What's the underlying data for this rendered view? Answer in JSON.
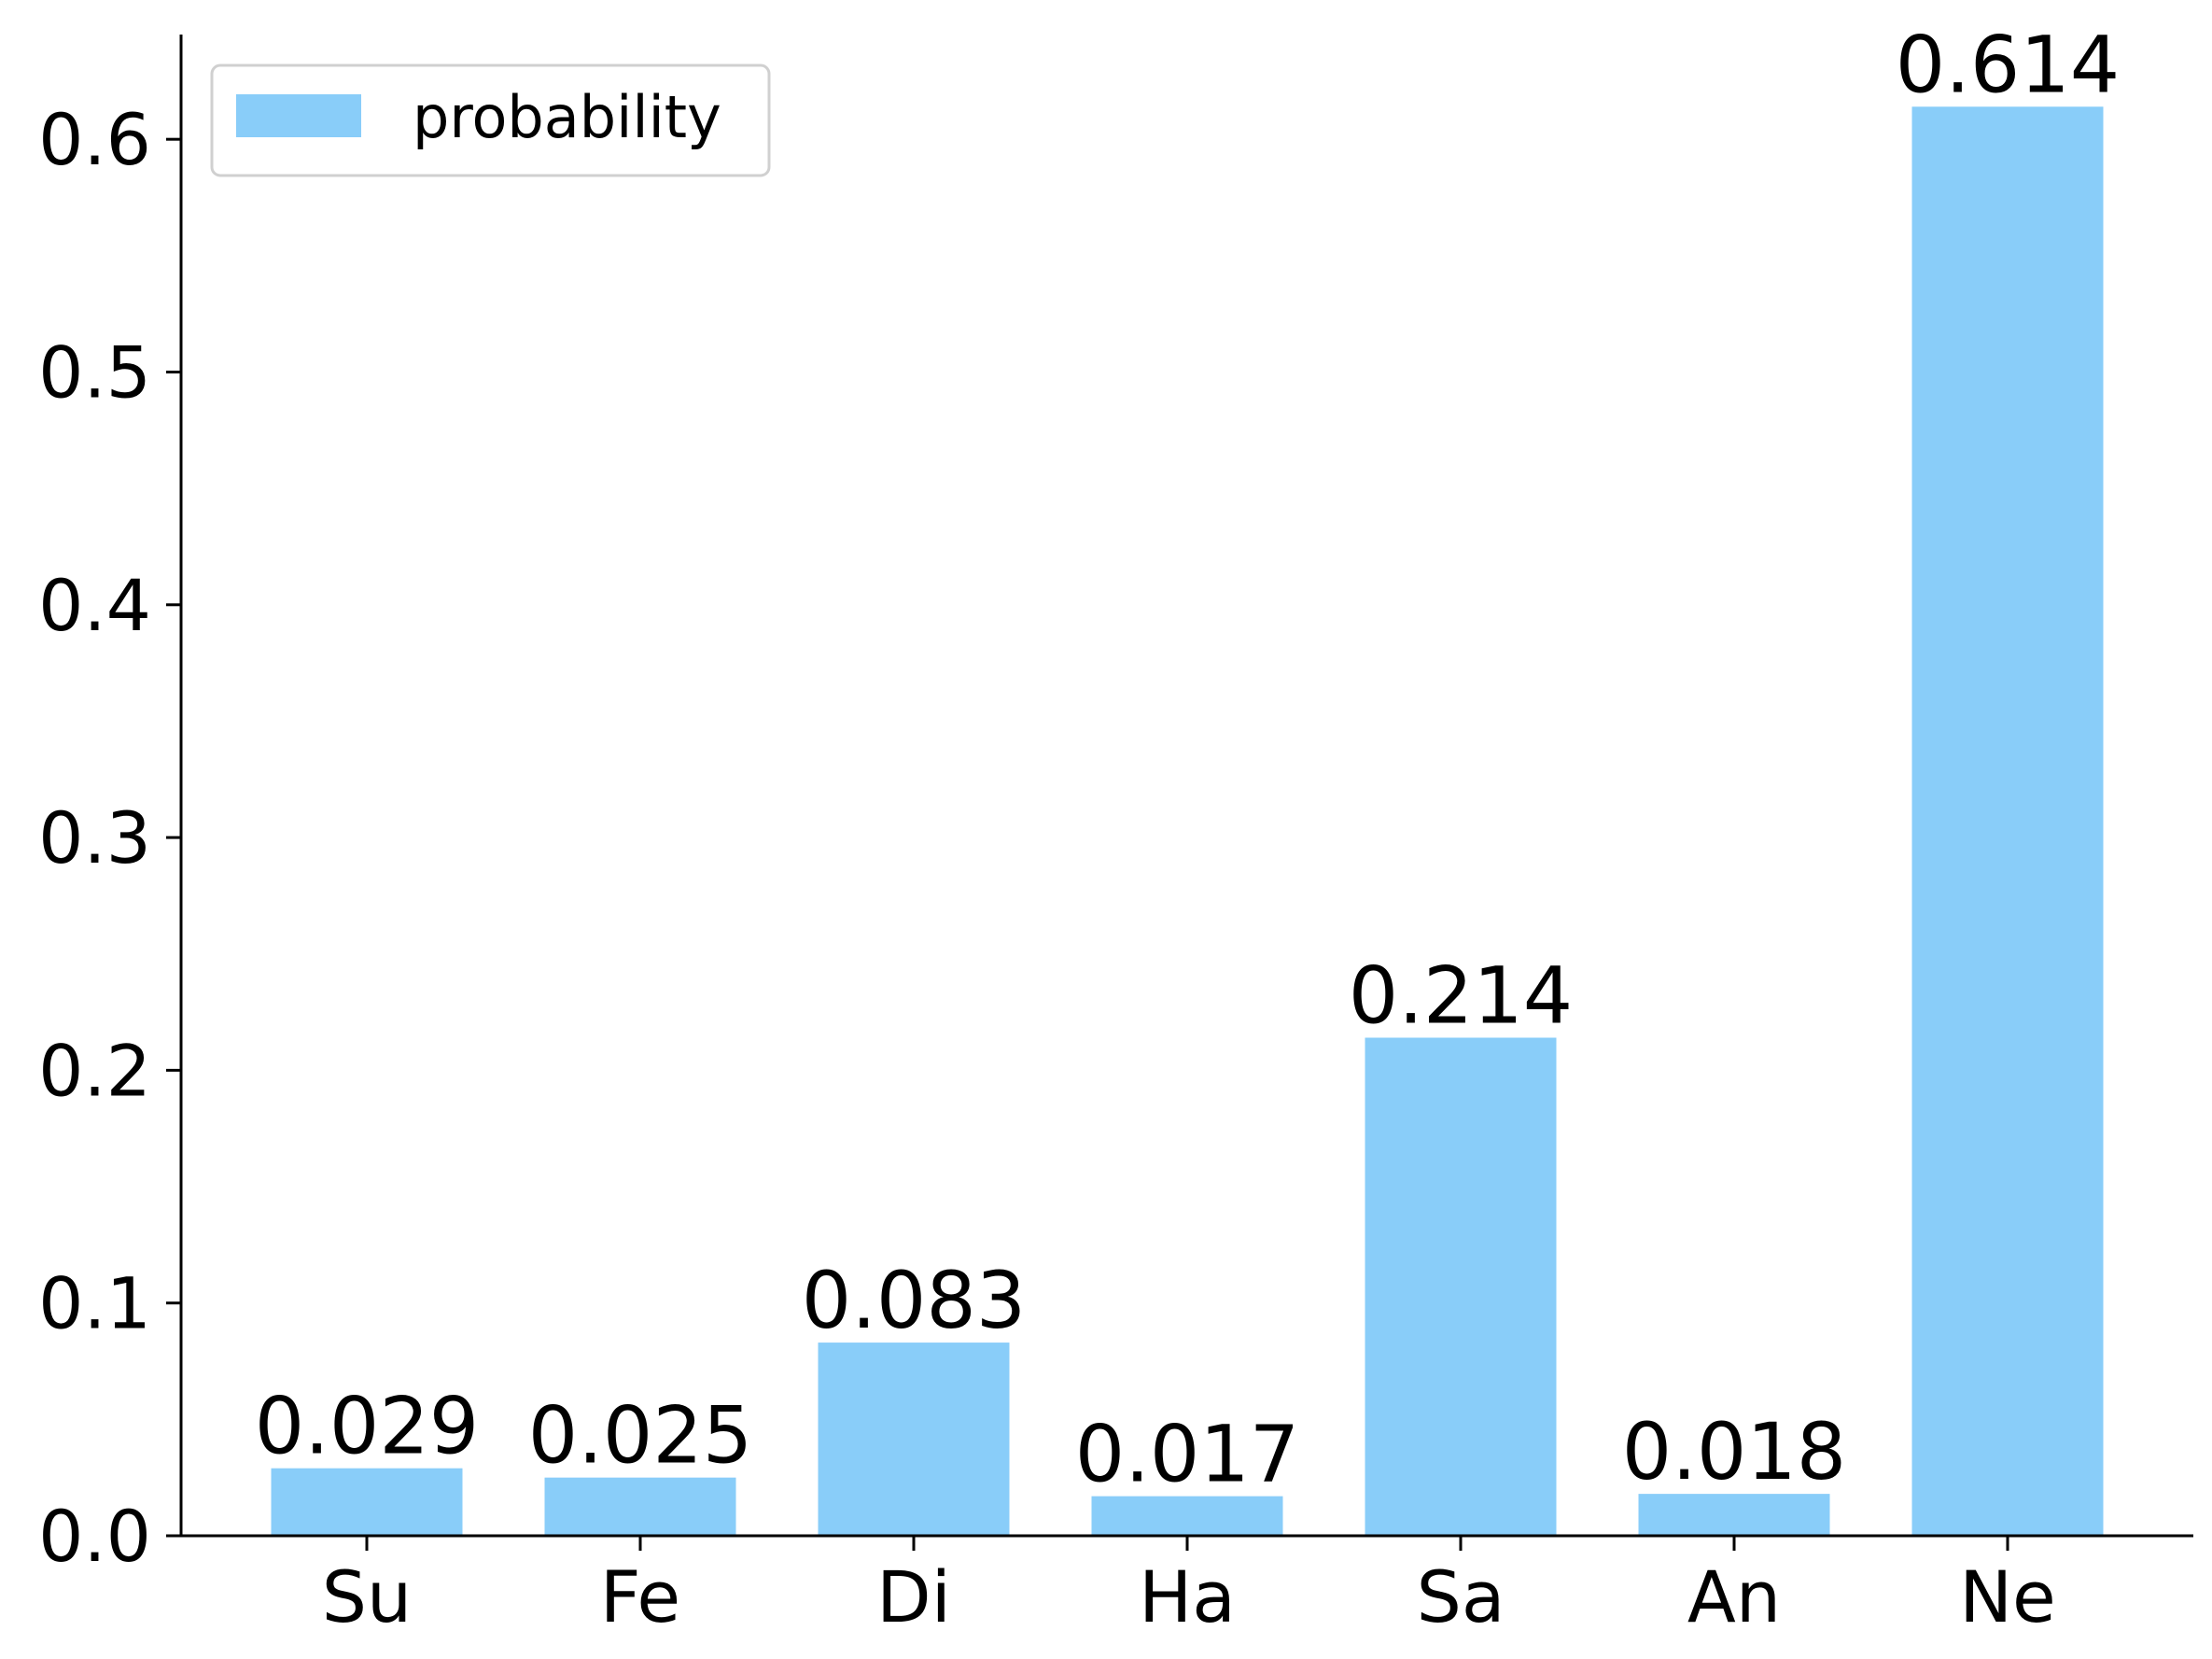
{
  "chart_data": {
    "type": "bar",
    "categories": [
      "Su",
      "Fe",
      "Di",
      "Ha",
      "Sa",
      "An",
      "Ne"
    ],
    "series": [
      {
        "name": "probability",
        "values": [
          0.029,
          0.025,
          0.083,
          0.017,
          0.214,
          0.018,
          0.614
        ],
        "value_labels": [
          "0.029",
          "0.025",
          "0.083",
          "0.017",
          "0.214",
          "0.018",
          "0.614"
        ],
        "color": "#89CDF9"
      }
    ],
    "ylim": [
      0,
      0.645
    ],
    "yticks": [
      0.0,
      0.1,
      0.2,
      0.3,
      0.4,
      0.5,
      0.6
    ],
    "ytick_labels": [
      "0.0",
      "0.1",
      "0.2",
      "0.3",
      "0.4",
      "0.5",
      "0.6"
    ],
    "grid": false,
    "legend": {
      "placement": "top-left",
      "entries": [
        "probability"
      ]
    }
  }
}
